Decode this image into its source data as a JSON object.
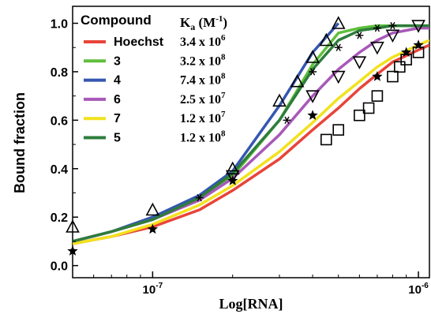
{
  "chart_data": {
    "type": "line",
    "xlabel": "Log[RNA]",
    "ylabel": "Bound fraction",
    "x_scale": "log",
    "xlim": [
      5e-08,
      1.1e-06
    ],
    "ylim": [
      -0.05,
      1.07
    ],
    "x_ticks": [
      {
        "value": 1e-07,
        "label": "10",
        "exp": "-7"
      },
      {
        "value": 1e-06,
        "label": "10",
        "exp": "-6"
      }
    ],
    "y_ticks": [
      {
        "value": 0.0,
        "label": "0.0"
      },
      {
        "value": 0.2,
        "label": "0.2"
      },
      {
        "value": 0.4,
        "label": "0.4"
      },
      {
        "value": 0.6,
        "label": "0.6"
      },
      {
        "value": 0.8,
        "label": "0.8"
      },
      {
        "value": 1.0,
        "label": "1.0"
      }
    ],
    "legend": {
      "position": "top-left",
      "header_compound": "Compound",
      "header_ka_main": "K",
      "header_ka_sub": "a",
      "header_ka_unit": " (M",
      "header_ka_unit_exp": "-1",
      "header_ka_close": ")"
    },
    "series": [
      {
        "name": "Hoechst",
        "ka_mantissa": "3.4 x 10",
        "ka_exp": "6",
        "color": "#e8443a",
        "marker": "square",
        "curve_x": [
          5e-08,
          7e-08,
          1e-07,
          1.5e-07,
          2e-07,
          3e-07,
          4e-07,
          5e-07,
          6e-07,
          7e-07,
          8e-07,
          1e-06,
          1.1e-06
        ],
        "curve_y": [
          0.09,
          0.12,
          0.16,
          0.23,
          0.31,
          0.44,
          0.56,
          0.65,
          0.73,
          0.79,
          0.84,
          0.89,
          0.91
        ],
        "points_x": [
          4.5e-07,
          5e-07,
          6e-07,
          6.5e-07,
          7e-07,
          8e-07,
          8.5e-07,
          9e-07,
          1e-06
        ],
        "points_y": [
          0.52,
          0.56,
          0.62,
          0.65,
          0.7,
          0.78,
          0.82,
          0.85,
          0.88
        ]
      },
      {
        "name": "3",
        "ka_mantissa": "3.2 x 10",
        "ka_exp": "8",
        "color": "#5fbf3c",
        "marker": "none",
        "curve_x": [
          5e-08,
          7e-08,
          1e-07,
          1.5e-07,
          2e-07,
          3e-07,
          4e-07,
          5e-07,
          6e-07,
          7e-07,
          8e-07,
          1e-06,
          1.1e-06
        ],
        "curve_y": [
          0.1,
          0.14,
          0.19,
          0.28,
          0.37,
          0.6,
          0.83,
          0.96,
          0.98,
          0.99,
          0.99,
          0.99,
          0.99
        ],
        "points_x": [],
        "points_y": []
      },
      {
        "name": "4",
        "ka_mantissa": "7.4 x 10",
        "ka_exp": "8",
        "color": "#3556b0",
        "marker": "triangle-up",
        "curve_x": [
          5e-08,
          7e-08,
          1e-07,
          1.5e-07,
          2e-07,
          3e-07,
          4e-07,
          5e-07
        ],
        "curve_y": [
          0.1,
          0.14,
          0.2,
          0.29,
          0.39,
          0.66,
          0.88,
          1.0
        ],
        "points_x": [
          5e-08,
          1e-07,
          2e-07,
          3e-07,
          3.5e-07,
          4e-07,
          4.5e-07,
          5e-07
        ],
        "points_y": [
          0.16,
          0.23,
          0.4,
          0.68,
          0.76,
          0.86,
          0.93,
          1.0
        ]
      },
      {
        "name": "6",
        "ka_mantissa": "2.5 x 10",
        "ka_exp": "7",
        "color": "#a858b8",
        "marker": "triangle-down",
        "curve_x": [
          5e-08,
          7e-08,
          1e-07,
          1.5e-07,
          2e-07,
          3e-07,
          4e-07,
          5e-07,
          6e-07,
          7e-07,
          8e-07,
          1e-06,
          1.1e-06
        ],
        "curve_y": [
          0.1,
          0.14,
          0.19,
          0.27,
          0.36,
          0.54,
          0.7,
          0.81,
          0.88,
          0.93,
          0.96,
          0.98,
          0.98
        ],
        "points_x": [
          2e-07,
          4e-07,
          5e-07,
          6e-07,
          7e-07,
          8e-07,
          1e-06
        ],
        "points_y": [
          0.37,
          0.7,
          0.78,
          0.84,
          0.9,
          0.95,
          0.99
        ]
      },
      {
        "name": "7",
        "ka_mantissa": "1.2 x 10",
        "ka_exp": "7",
        "color": "#f2e21d",
        "marker": "star",
        "curve_x": [
          5e-08,
          7e-08,
          1e-07,
          1.5e-07,
          2e-07,
          3e-07,
          4e-07,
          5e-07,
          6e-07,
          7e-07,
          8e-07,
          1e-06,
          1.1e-06
        ],
        "curve_y": [
          0.09,
          0.12,
          0.17,
          0.25,
          0.33,
          0.47,
          0.59,
          0.69,
          0.76,
          0.82,
          0.86,
          0.91,
          0.93
        ],
        "points_x": [
          5e-08,
          1e-07,
          2e-07,
          4e-07,
          7e-07,
          9e-07,
          1e-06
        ],
        "points_y": [
          0.06,
          0.15,
          0.35,
          0.62,
          0.78,
          0.88,
          0.91
        ]
      },
      {
        "name": "5",
        "ka_mantissa": "1.2 x 10",
        "ka_exp": "8",
        "color": "#2e7d3c",
        "marker": "asterisk",
        "curve_x": [
          5e-08,
          7e-08,
          1e-07,
          1.5e-07,
          2e-07,
          3e-07,
          4e-07,
          5e-07,
          6e-07,
          7e-07,
          8e-07,
          1e-06,
          1.1e-06
        ],
        "curve_y": [
          0.1,
          0.14,
          0.19,
          0.28,
          0.38,
          0.6,
          0.81,
          0.93,
          0.97,
          0.98,
          0.99,
          0.99,
          0.99
        ],
        "points_x": [
          1.5e-07,
          3.2e-07,
          4e-07,
          5e-07,
          6e-07,
          7e-07,
          8e-07
        ],
        "points_y": [
          0.28,
          0.6,
          0.8,
          0.9,
          0.95,
          0.98,
          0.99
        ]
      }
    ]
  }
}
